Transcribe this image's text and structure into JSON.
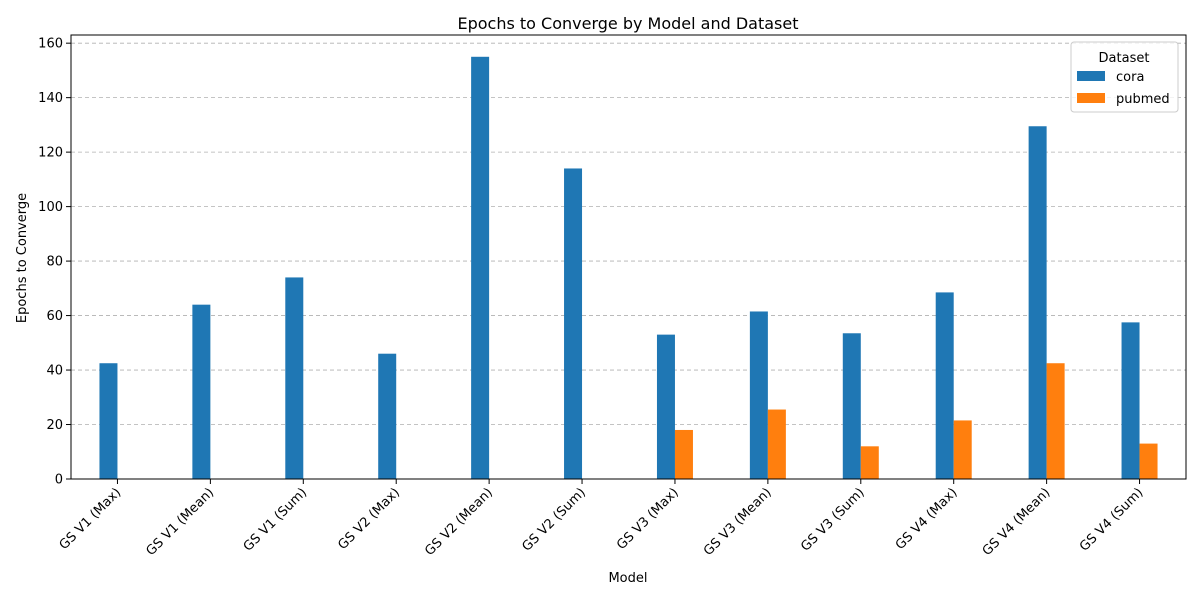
{
  "chart_data": {
    "type": "bar",
    "title": "Epochs to Converge by Model and Dataset",
    "xlabel": "Model",
    "ylabel": "Epochs to Converge",
    "ylim": [
      0,
      163
    ],
    "yticks": [
      0,
      20,
      40,
      60,
      80,
      100,
      120,
      140,
      160
    ],
    "grid": "horizontal dashed",
    "legend": {
      "title": "Dataset",
      "position": "top-right"
    },
    "categories": [
      "GS V1 (Max)",
      "GS V1 (Mean)",
      "GS V1 (Sum)",
      "GS V2 (Max)",
      "GS V2 (Mean)",
      "GS V2 (Sum)",
      "GS V3 (Max)",
      "GS V3 (Mean)",
      "GS V3 (Sum)",
      "GS V4 (Max)",
      "GS V4 (Mean)",
      "GS V4 (Sum)"
    ],
    "series": [
      {
        "name": "cora",
        "color": "#1f77b4",
        "values": [
          42.5,
          64,
          74,
          46,
          155,
          114,
          53,
          61.5,
          53.5,
          68.5,
          129.5,
          57.5
        ]
      },
      {
        "name": "pubmed",
        "color": "#ff7f0e",
        "values": [
          null,
          null,
          null,
          null,
          null,
          null,
          18,
          25.5,
          12,
          21.5,
          42.5,
          13
        ]
      }
    ]
  }
}
